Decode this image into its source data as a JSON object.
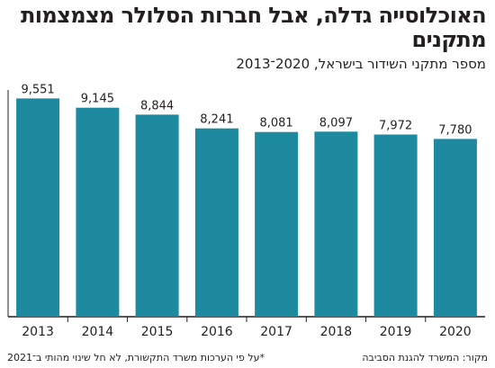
{
  "title": "האוכלוסייה גדלה, אבל חברות הסלולר מצמצמות מתקנים",
  "subtitle": "מספר מתקני השידור בישראל, 2020־2013",
  "footer": {
    "source": "מקור: המשרד להגנת הסביבה",
    "note": "*על פי הערכות משרד התקשורת, לא חל שינוי מהותי ב־2021"
  },
  "colors": {
    "bar": "#1d8aa0",
    "text": "#231f20",
    "axis": "#231f20",
    "grid": "#d9d9d9"
  },
  "chart_data": {
    "type": "bar",
    "categories": [
      "2013",
      "2014",
      "2015",
      "2016",
      "2017",
      "2018",
      "2019",
      "2020"
    ],
    "values": [
      9551,
      9145,
      8844,
      8241,
      8081,
      8097,
      7972,
      7780
    ],
    "value_labels": [
      "9,551",
      "9,145",
      "8,844",
      "8,241",
      "8,081",
      "8,097",
      "7,972",
      "7,780"
    ],
    "ylim": [
      0,
      10000
    ],
    "grid": false,
    "xlabel": "",
    "ylabel": ""
  }
}
